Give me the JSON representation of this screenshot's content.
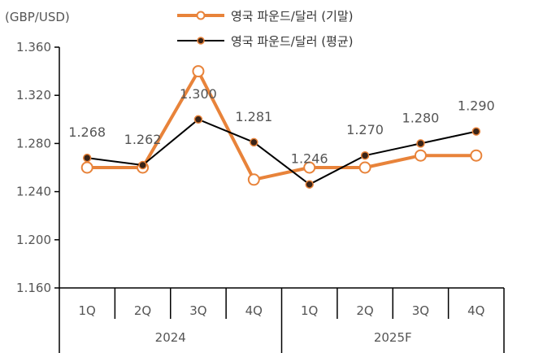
{
  "chart_data": {
    "type": "line",
    "y_unit": "(GBP/USD)",
    "ylim": [
      1.16,
      1.36
    ],
    "y_ticks": [
      "1.360",
      "1.320",
      "1.280",
      "1.240",
      "1.200",
      "1.160"
    ],
    "categories": [
      "1Q",
      "2Q",
      "3Q",
      "4Q",
      "1Q",
      "2Q",
      "3Q",
      "4Q"
    ],
    "groups": [
      {
        "label": "2024",
        "span": 4
      },
      {
        "label": "2025F",
        "span": 4
      }
    ],
    "series": [
      {
        "name": "영국 파운드/달러 (기말)",
        "color": "#E8833A",
        "marker": "open-circle",
        "values": [
          1.26,
          1.26,
          1.34,
          1.25,
          1.26,
          1.26,
          1.27,
          1.27
        ],
        "data_labels": null
      },
      {
        "name": "영국 파운드/달러 (평균)",
        "color": "#000000",
        "marker": "filled-circle",
        "values": [
          1.268,
          1.262,
          1.3,
          1.281,
          1.246,
          1.27,
          1.28,
          1.29
        ],
        "data_labels": [
          "1.268",
          "1.262",
          "1.300",
          "1.281",
          "1.246",
          "1.270",
          "1.280",
          "1.290"
        ]
      }
    ],
    "grid": false,
    "legend": "top-center"
  }
}
